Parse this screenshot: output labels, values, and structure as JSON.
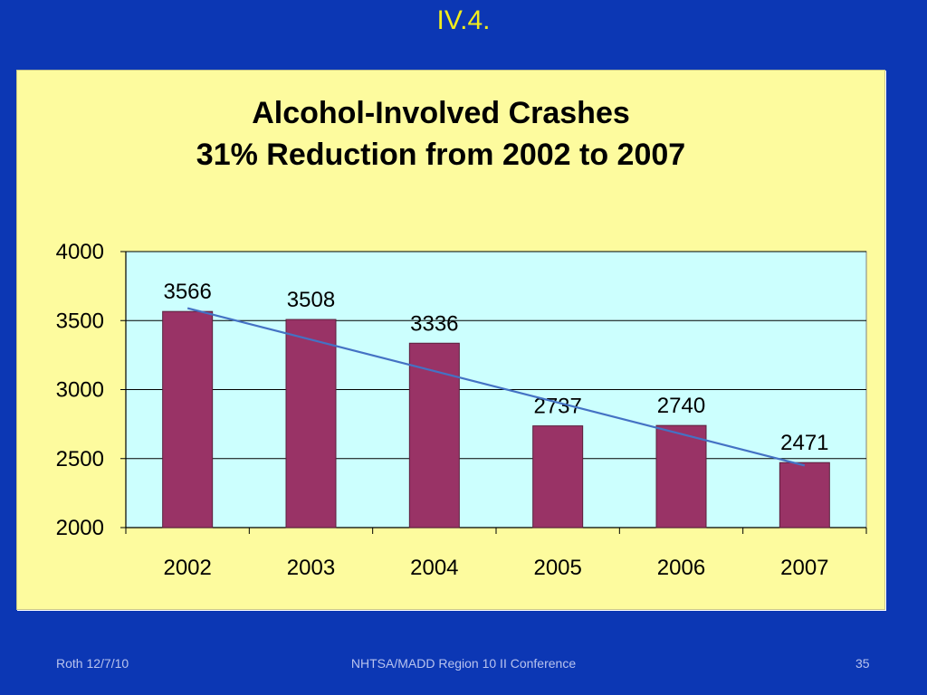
{
  "slide": {
    "title": "IV.4.",
    "footer_left": "Roth 12/7/10",
    "footer_center": "NHTSA/MADD Region 10 II Conference",
    "footer_right": "35"
  },
  "colors": {
    "background": "#0c37b4",
    "title": "#f2ec1b",
    "panel": "#fdfb9e",
    "plot_area": "#ccfffe",
    "bar": "#993366",
    "trendline": "#4472c4"
  },
  "chart_data": {
    "type": "bar",
    "title_lines": [
      "Alcohol-Involved Crashes",
      "31% Reduction from 2002 to 2007"
    ],
    "categories": [
      "2002",
      "2003",
      "2004",
      "2005",
      "2006",
      "2007"
    ],
    "values": [
      3566,
      3508,
      3336,
      2737,
      2740,
      2471
    ],
    "data_labels": [
      "3566",
      "3508",
      "3336",
      "2737",
      "2740",
      "2471"
    ],
    "ylim": [
      2000,
      4000
    ],
    "yticks": [
      2000,
      2500,
      3000,
      3500,
      4000
    ],
    "ytick_labels": [
      "2000",
      "2500",
      "3000",
      "3500",
      "4000"
    ],
    "grid": true,
    "trendline": {
      "type": "linear",
      "start": {
        "x": "2002",
        "y": 3590
      },
      "end": {
        "x": "2007",
        "y": 2450
      }
    },
    "xlabel": "",
    "ylabel": ""
  }
}
